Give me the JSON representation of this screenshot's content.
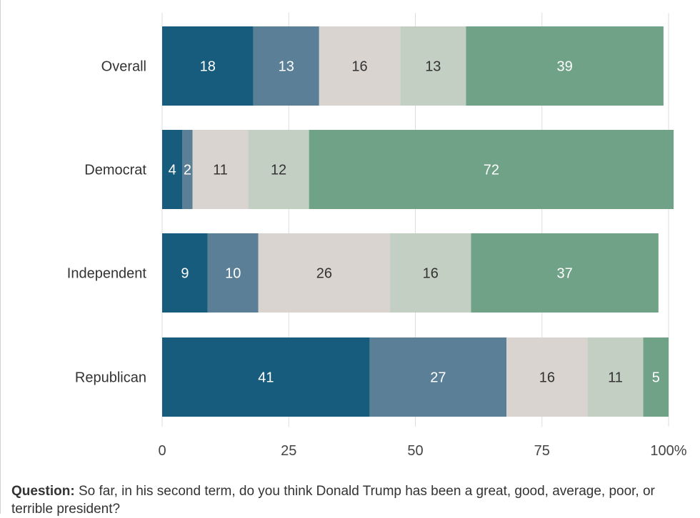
{
  "chart_data": {
    "type": "bar",
    "orientation": "horizontal",
    "stacked": true,
    "categories": [
      "Overall",
      "Democrat",
      "Independent",
      "Republican"
    ],
    "series": [
      {
        "color": "#175c7c",
        "label_color": "#ffffff",
        "values": [
          18,
          4,
          9,
          41
        ]
      },
      {
        "color": "#5b7f96",
        "label_color": "#ffffff",
        "values": [
          13,
          2,
          10,
          27
        ]
      },
      {
        "color": "#d9d4cf",
        "label_color": "#333333",
        "values": [
          16,
          11,
          26,
          16
        ]
      },
      {
        "color": "#c4cfc4",
        "label_color": "#333333",
        "values": [
          13,
          12,
          16,
          11
        ]
      },
      {
        "color": "#6fa287",
        "label_color": "#ffffff",
        "values": [
          39,
          72,
          37,
          5
        ]
      }
    ],
    "x_ticks": [
      "0",
      "25",
      "50",
      "75",
      "100%"
    ],
    "x_tick_values": [
      0,
      25,
      50,
      75,
      100
    ],
    "xlim": [
      0,
      100
    ],
    "grid": true,
    "legend": "none"
  },
  "footer": {
    "question_label": "Question:",
    "question_text": " So far, in his second term, do you think Donald Trump has been a great, good, average, poor, or terrible president?"
  }
}
